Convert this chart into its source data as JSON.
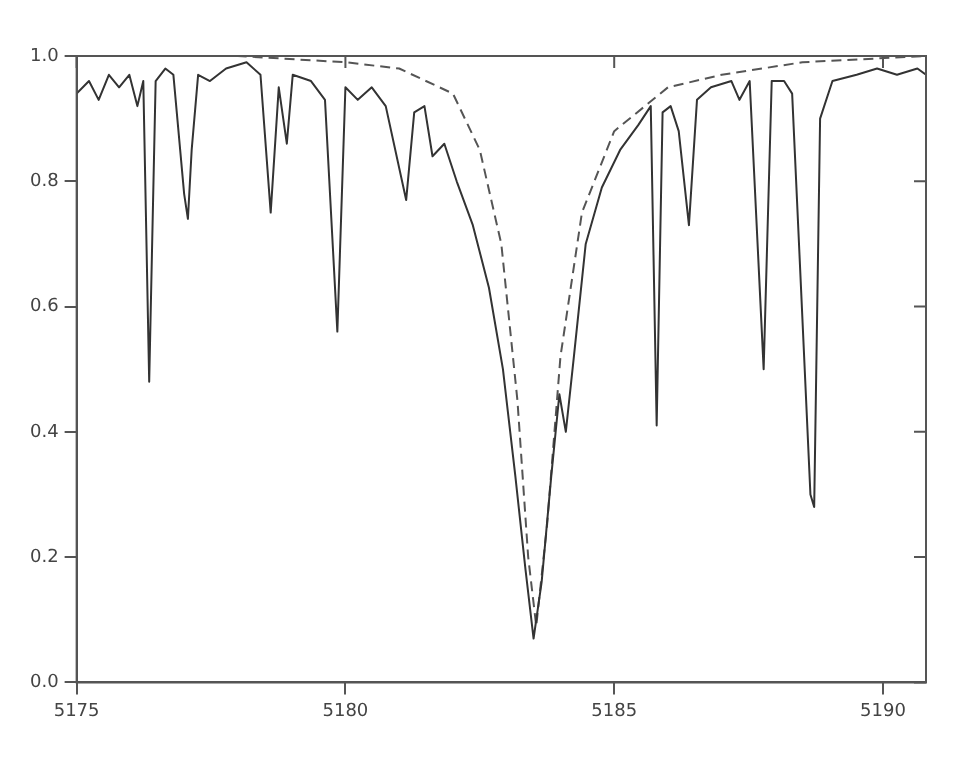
{
  "chart_data": {
    "type": "line",
    "xlim": [
      5175,
      5190.8
    ],
    "xticks": [
      5175,
      5180,
      5185,
      5190
    ],
    "ylim": [
      0,
      1
    ],
    "yticks": [
      {
        "value": 0,
        "label": "0.0"
      },
      {
        "value": 0.2,
        "label": "0.2"
      },
      {
        "value": 0.4,
        "label": "0.4"
      },
      {
        "value": 0.6,
        "label": "0.6"
      },
      {
        "value": 0.8,
        "label": "0.8"
      },
      {
        "value": 1,
        "label": "1.0"
      }
    ],
    "grid": false,
    "legend": false,
    "marker": "none",
    "series": [
      {
        "color": "#333333",
        "line_style": "solid",
        "x": [
          5175.0,
          5175.23,
          5175.41,
          5175.6,
          5175.79,
          5175.98,
          5176.13,
          5176.24,
          5176.35,
          5176.47,
          5176.65,
          5176.8,
          5177.0,
          5177.07,
          5177.14,
          5177.26,
          5177.48,
          5177.78,
          5178.16,
          5178.42,
          5178.61,
          5178.76,
          5178.91,
          5179.02,
          5179.36,
          5179.62,
          5179.85,
          5180.0,
          5180.23,
          5180.49,
          5180.75,
          5181.13,
          5181.28,
          5181.47,
          5181.62,
          5181.84,
          5182.07,
          5182.37,
          5182.67,
          5182.93,
          5183.16,
          5183.35,
          5183.5,
          5183.65,
          5183.83,
          5183.98,
          5184.1,
          5184.25,
          5184.47,
          5184.77,
          5185.11,
          5185.45,
          5185.68,
          5185.79,
          5185.9,
          5186.05,
          5186.2,
          5186.39,
          5186.54,
          5186.8,
          5187.18,
          5187.33,
          5187.52,
          5187.78,
          5187.93,
          5188.16,
          5188.31,
          5188.65,
          5188.72,
          5188.83,
          5189.06,
          5189.51,
          5189.89,
          5190.26,
          5190.64,
          5190.8
        ],
        "values": [
          0.94,
          0.96,
          0.93,
          0.97,
          0.95,
          0.97,
          0.92,
          0.96,
          0.48,
          0.96,
          0.98,
          0.97,
          0.78,
          0.74,
          0.85,
          0.97,
          0.96,
          0.98,
          0.99,
          0.97,
          0.75,
          0.95,
          0.86,
          0.97,
          0.96,
          0.93,
          0.56,
          0.95,
          0.93,
          0.95,
          0.92,
          0.77,
          0.91,
          0.92,
          0.84,
          0.86,
          0.8,
          0.73,
          0.63,
          0.5,
          0.33,
          0.18,
          0.07,
          0.16,
          0.33,
          0.46,
          0.4,
          0.52,
          0.7,
          0.79,
          0.85,
          0.89,
          0.92,
          0.41,
          0.91,
          0.92,
          0.88,
          0.73,
          0.93,
          0.95,
          0.96,
          0.93,
          0.96,
          0.5,
          0.96,
          0.96,
          0.94,
          0.3,
          0.28,
          0.9,
          0.96,
          0.97,
          0.98,
          0.97,
          0.98,
          0.97
        ]
      },
      {
        "color": "#555555",
        "line_style": "dashed",
        "x": [
          5175,
          5178,
          5180,
          5181,
          5182,
          5182.5,
          5182.9,
          5183.2,
          5183.4,
          5183.55,
          5183.75,
          5184,
          5184.4,
          5185,
          5186,
          5187,
          5188.5,
          5190.8
        ],
        "values": [
          1.0,
          1.0,
          0.99,
          0.98,
          0.94,
          0.85,
          0.7,
          0.45,
          0.2,
          0.09,
          0.25,
          0.52,
          0.75,
          0.88,
          0.95,
          0.97,
          0.99,
          1.0
        ]
      }
    ]
  }
}
